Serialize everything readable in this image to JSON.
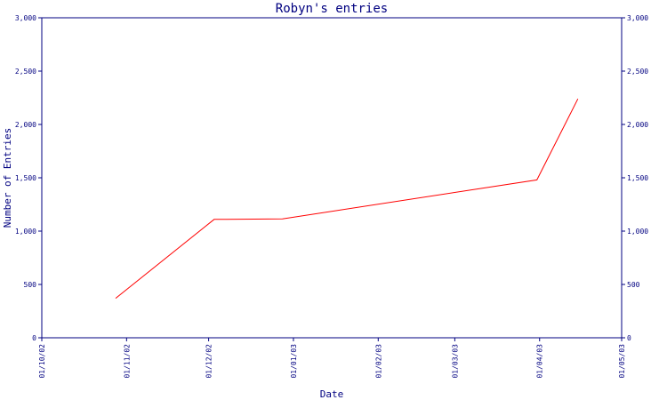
{
  "chart_data": {
    "type": "line",
    "title": "Robyn's entries",
    "xlabel": "Date",
    "ylabel": "Number of Entries",
    "x_ticks": [
      "01/10/02",
      "01/11/02",
      "01/12/02",
      "01/01/03",
      "01/02/03",
      "01/03/03",
      "01/04/03",
      "01/05/03"
    ],
    "y_ticks": [
      "0",
      "500",
      "1,000",
      "1,500",
      "2,000",
      "2,500",
      "3,000"
    ],
    "ylim": [
      0,
      3000
    ],
    "xlim": [
      "2002-10-01",
      "2003-05-01"
    ],
    "grid": false,
    "series": [
      {
        "color": "#ff0000",
        "points": [
          {
            "x": "2002-10-28",
            "y": 370
          },
          {
            "x": "2002-12-03",
            "y": 1110
          },
          {
            "x": "2002-12-28",
            "y": 1115
          },
          {
            "x": "2003-03-31",
            "y": 1480
          },
          {
            "x": "2003-04-15",
            "y": 2240
          }
        ]
      }
    ],
    "axis_color": "#000080"
  }
}
